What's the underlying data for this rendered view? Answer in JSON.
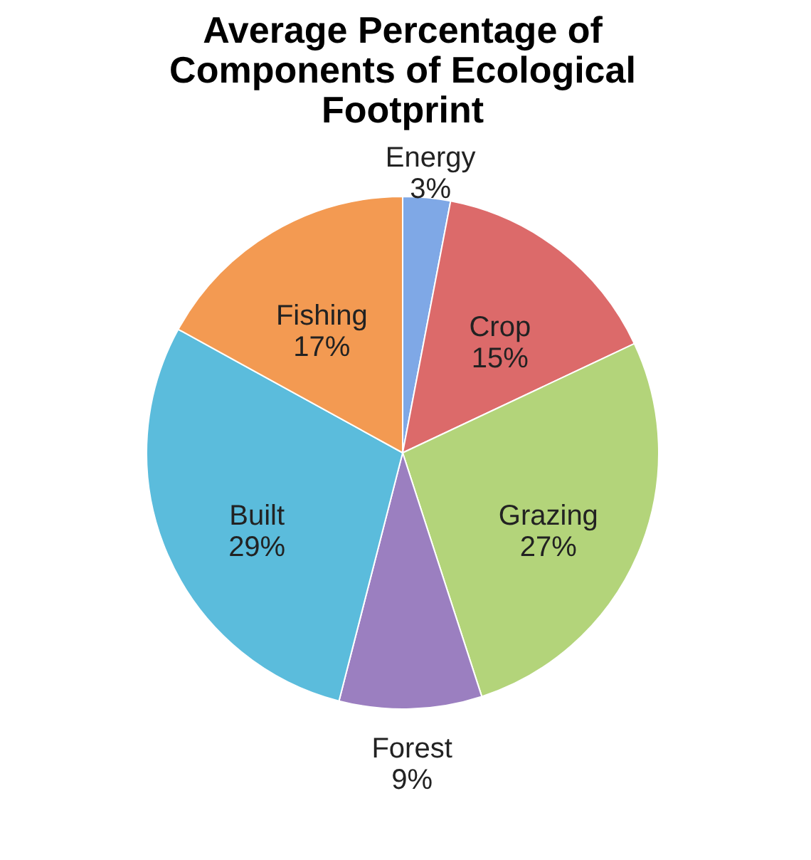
{
  "chart_data": {
    "type": "pie",
    "title": "Average Percentage of\nComponents of Ecological\nFootprint",
    "categories": [
      "Energy",
      "Crop",
      "Grazing",
      "Forest",
      "Built",
      "Fishing"
    ],
    "values": [
      3,
      15,
      27,
      9,
      29,
      17
    ],
    "value_labels": [
      "3%",
      "15%",
      "27%",
      "9%",
      "29%",
      "17%"
    ],
    "colors": [
      "#7fa8e6",
      "#dc6a6a",
      "#b3d47a",
      "#9b7fc0",
      "#5bbcdc",
      "#f39a52"
    ],
    "legend": false
  }
}
